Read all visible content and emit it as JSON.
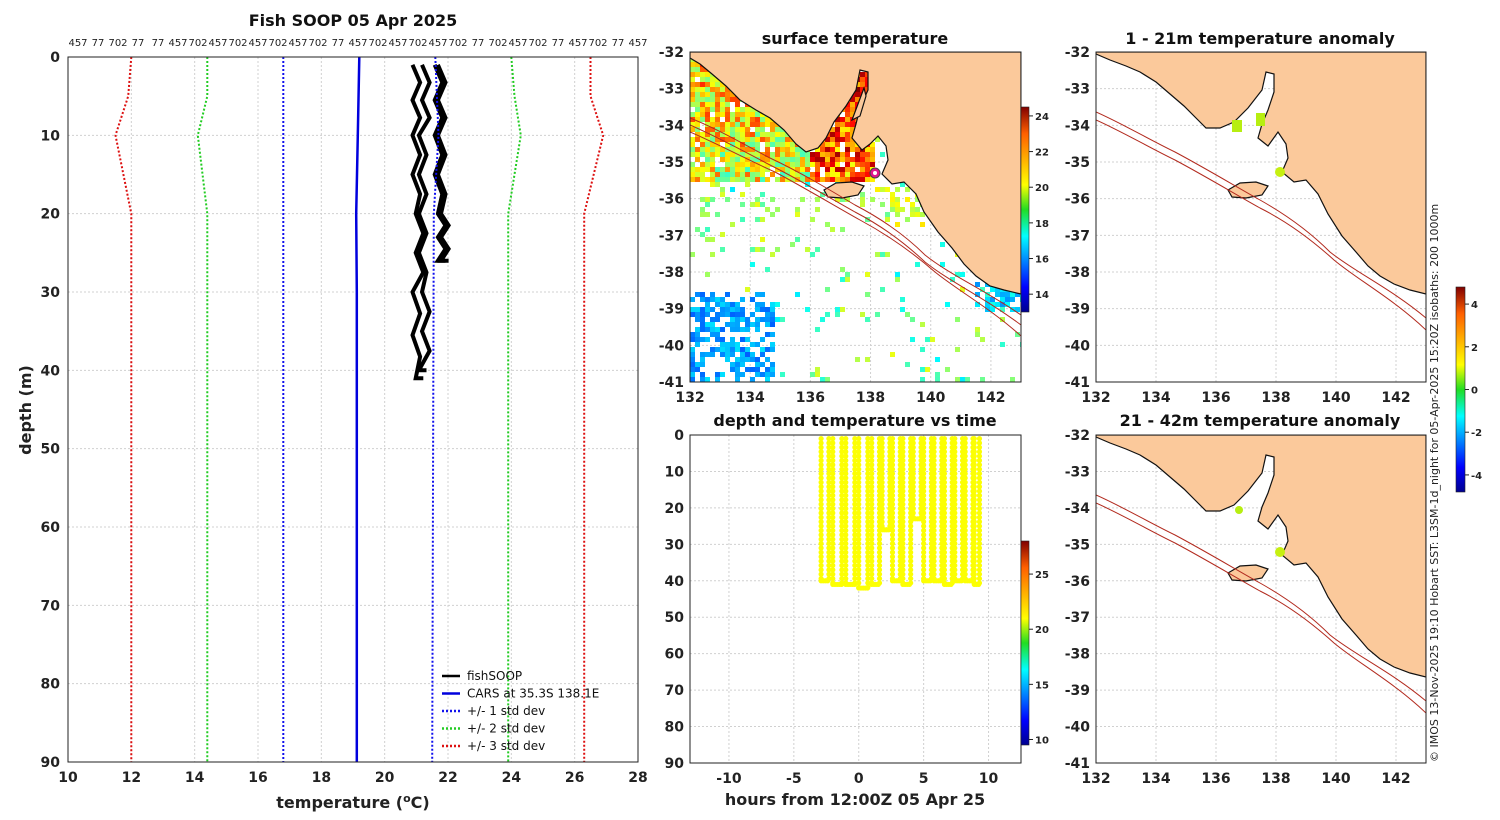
{
  "chart_data": [
    {
      "id": "profile",
      "type": "line",
      "title": "Fish SOOP 05 Apr 2025",
      "xlabel": "temperature (°C)",
      "ylabel": "depth (m)",
      "xlim": [
        10,
        28
      ],
      "ylim": [
        90,
        0
      ],
      "xticks": [
        10,
        12,
        14,
        16,
        18,
        20,
        22,
        24,
        26,
        28
      ],
      "yticks": [
        0,
        10,
        20,
        30,
        40,
        50,
        60,
        70,
        80,
        90
      ],
      "top_axis_labels": [
        "457",
        "77",
        "702",
        "77",
        "77",
        "457",
        "702",
        "457",
        "702",
        "457",
        "702",
        "457",
        "702",
        "77",
        "457",
        "702",
        "457",
        "702",
        "457",
        "702",
        "77",
        "702",
        "457",
        "702",
        "77",
        "457",
        "702",
        "77",
        "457"
      ],
      "series": [
        {
          "name": "fishSOOP",
          "color": "#000000",
          "style": "solid",
          "segments": [
            {
              "depth": [
                1,
                10,
                20,
                30,
                41
              ],
              "temp": [
                21.0,
                21.0,
                21.1,
                21.0,
                21.1
              ]
            },
            {
              "depth": [
                1,
                10,
                20,
                30,
                40
              ],
              "temp": [
                21.3,
                21.2,
                21.2,
                21.3,
                21.2
              ]
            },
            {
              "depth": [
                1,
                10,
                20,
                26
              ],
              "temp": [
                21.8,
                21.8,
                21.9,
                21.9
              ]
            },
            {
              "depth": [
                1,
                10,
                20,
                26
              ],
              "temp": [
                21.7,
                21.7,
                21.8,
                21.8
              ]
            }
          ]
        },
        {
          "name": "CARS at 35.3S 138.1E",
          "color": "#0000dd",
          "style": "solid",
          "depth": [
            0,
            10,
            20,
            30,
            90
          ],
          "temp": [
            19.2,
            19.15,
            19.1,
            19.12,
            19.12
          ]
        },
        {
          "name": "+/- 1 std dev",
          "color": "#1111ee",
          "style": "dotted",
          "lines": [
            {
              "depth": [
                0,
                10,
                20,
                90
              ],
              "temp": [
                16.8,
                16.8,
                16.8,
                16.8
              ]
            },
            {
              "depth": [
                0,
                10,
                20,
                90
              ],
              "temp": [
                21.6,
                21.7,
                21.55,
                21.5
              ]
            }
          ]
        },
        {
          "name": "+/- 2 std dev",
          "color": "#22cc22",
          "style": "dotted",
          "lines": [
            {
              "depth": [
                0,
                5,
                10,
                20,
                90
              ],
              "temp": [
                14.4,
                14.4,
                14.1,
                14.4,
                14.4
              ]
            },
            {
              "depth": [
                0,
                5,
                10,
                20,
                90
              ],
              "temp": [
                24.0,
                24.1,
                24.3,
                23.9,
                23.9
              ]
            }
          ]
        },
        {
          "name": "+/- 3 std dev",
          "color": "#dd1111",
          "style": "dotted",
          "lines": [
            {
              "depth": [
                0,
                5,
                10,
                20,
                90
              ],
              "temp": [
                12.0,
                11.9,
                11.5,
                12.0,
                12.0
              ]
            },
            {
              "depth": [
                0,
                5,
                10,
                20,
                90
              ],
              "temp": [
                26.5,
                26.5,
                26.9,
                26.3,
                26.3
              ]
            }
          ]
        }
      ],
      "legend": [
        "fishSOOP",
        "CARS at 35.3S 138.1E",
        "+/- 1 std dev",
        "+/- 2 std dev",
        "+/- 3 std dev"
      ],
      "legend_position": "bottom-right"
    },
    {
      "id": "sst",
      "type": "heatmap",
      "title": "surface temperature",
      "xlim": [
        132,
        143
      ],
      "ylim": [
        -41,
        -32
      ],
      "xticks": [
        132,
        134,
        136,
        138,
        140,
        142
      ],
      "yticks": [
        -32,
        -33,
        -34,
        -35,
        -36,
        -37,
        -38,
        -39,
        -40,
        -41
      ],
      "colorbar": {
        "ticks": [
          14,
          16,
          18,
          20,
          22,
          24
        ],
        "range": [
          13,
          24.5
        ]
      },
      "marker": {
        "lon": 138.1,
        "lat": -35.3,
        "color": "#e0158c"
      }
    },
    {
      "id": "timeseries",
      "type": "scatter",
      "title": "depth and temperature vs time",
      "xlabel": "hours from 12:00Z 05 Apr 25",
      "xlim": [
        -13,
        12.5
      ],
      "ylim": [
        90,
        0
      ],
      "xticks": [
        -10,
        -5,
        0,
        5,
        10
      ],
      "yticks": [
        0,
        10,
        20,
        30,
        40,
        50,
        60,
        70,
        80,
        90
      ],
      "colorbar": {
        "ticks": [
          10,
          15,
          20,
          25
        ],
        "range": [
          9.5,
          28
        ]
      },
      "dives": [
        {
          "start": -2.9,
          "end": -2.3,
          "max_depth": 40
        },
        {
          "start": -2.0,
          "end": -1.3,
          "max_depth": 41
        },
        {
          "start": -1.0,
          "end": -0.3,
          "max_depth": 41
        },
        {
          "start": 0.0,
          "end": 0.7,
          "max_depth": 42
        },
        {
          "start": 1.0,
          "end": 1.6,
          "max_depth": 41
        },
        {
          "start": 1.8,
          "end": 2.4,
          "max_depth": 26
        },
        {
          "start": 2.6,
          "end": 3.2,
          "max_depth": 40
        },
        {
          "start": 3.4,
          "end": 4.0,
          "max_depth": 41
        },
        {
          "start": 4.2,
          "end": 4.8,
          "max_depth": 23
        },
        {
          "start": 5.0,
          "end": 5.6,
          "max_depth": 40
        },
        {
          "start": 5.8,
          "end": 6.4,
          "max_depth": 40
        },
        {
          "start": 6.6,
          "end": 7.2,
          "max_depth": 41
        },
        {
          "start": 7.4,
          "end": 8.0,
          "max_depth": 40
        },
        {
          "start": 8.2,
          "end": 8.8,
          "max_depth": 40
        },
        {
          "start": 8.9,
          "end": 9.3,
          "max_depth": 41
        }
      ],
      "marker_temp": 21
    },
    {
      "id": "anom1",
      "type": "heatmap",
      "title": "1 - 21m temperature anomaly",
      "xlim": [
        132,
        143
      ],
      "ylim": [
        -41,
        -32
      ],
      "xticks": [
        132,
        134,
        136,
        138,
        140,
        142
      ],
      "yticks": [
        -32,
        -33,
        -34,
        -35,
        -36,
        -37,
        -38,
        -39,
        -40,
        -41
      ]
    },
    {
      "id": "anom2",
      "type": "heatmap",
      "title": "21 - 42m temperature anomaly",
      "xlim": [
        132,
        143
      ],
      "ylim": [
        -41,
        -32
      ],
      "xticks": [
        132,
        134,
        136,
        138,
        140,
        142
      ],
      "yticks": [
        -32,
        -33,
        -34,
        -35,
        -36,
        -37,
        -38,
        -39,
        -40,
        -41
      ]
    },
    {
      "id": "anom_colorbar",
      "type": "heatmap",
      "colorbar": {
        "ticks": [
          4,
          2,
          0,
          -2,
          -4
        ],
        "range": [
          -4.8,
          4.8
        ]
      }
    }
  ],
  "credit": "© IMOS 13-Nov-2025 19:10 Hobart SST: L3SM-1d_night for 05-Apr-2025 15:20Z isobaths: 200  1000m"
}
